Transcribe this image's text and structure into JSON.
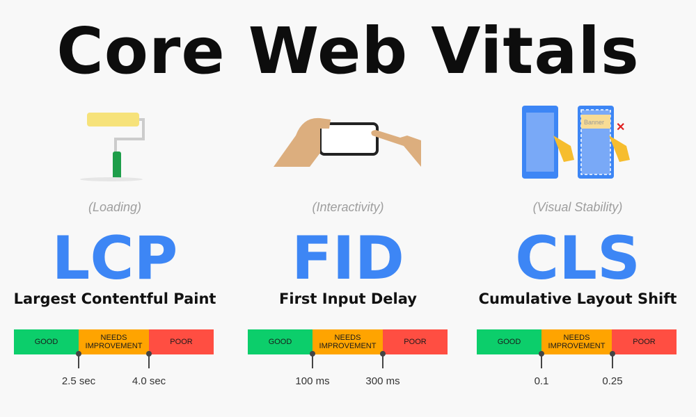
{
  "title": "Core Web Vitals",
  "colors": {
    "accent": "#3d86f5",
    "good": "#0cce6b",
    "needs_improvement": "#ffa400",
    "poor": "#ff4e42"
  },
  "segments": {
    "good": "GOOD",
    "ni": "NEEDS IMPROVEMENT",
    "poor": "POOR"
  },
  "metrics": [
    {
      "category": "(Loading)",
      "abbr": "LCP",
      "name": "Largest Contentful Paint",
      "icon": "paint-roller-icon",
      "thresholds": [
        "2.5 sec",
        "4.0 sec"
      ]
    },
    {
      "category": "(Interactivity)",
      "abbr": "FID",
      "name": "First Input Delay",
      "icon": "hands-tapping-phone-icon",
      "thresholds": [
        "100 ms",
        "300 ms"
      ]
    },
    {
      "category": "(Visual Stability)",
      "abbr": "CLS",
      "name": "Cumulative Layout Shift",
      "icon": "layout-shift-phones-icon",
      "thresholds": [
        "0.1",
        "0.25"
      ],
      "banner": "Banner"
    }
  ]
}
